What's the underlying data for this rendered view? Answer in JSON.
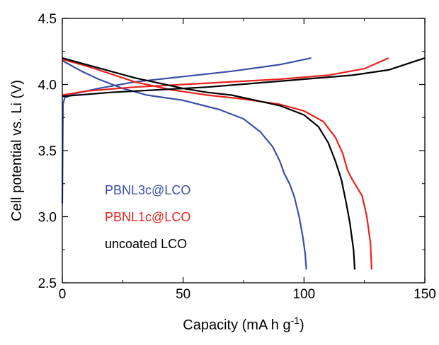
{
  "chart_data": {
    "type": "line",
    "xlabel": "Capacity (mA h g",
    "xlabel_sup": "-1",
    "xlabel_suffix": ")",
    "ylabel": "Cell potential vs. Li (V)",
    "xlim": [
      0,
      150
    ],
    "ylim": [
      2.5,
      4.5
    ],
    "xticks": [
      0,
      50,
      100,
      150
    ],
    "yticks": [
      2.5,
      3.0,
      3.5,
      4.0,
      4.5
    ],
    "xtick_labels": [
      "0",
      "50",
      "100",
      "150"
    ],
    "ytick_labels": [
      "2.5",
      "3.0",
      "3.5",
      "4.0",
      "4.5"
    ],
    "grid": false,
    "legend_placement": "lower-left",
    "series": [
      {
        "name": "PBNL3c@LCO",
        "color": "#3a4fa8",
        "charge": [
          [
            0,
            3.1
          ],
          [
            0.3,
            3.85
          ],
          [
            1,
            3.9
          ],
          [
            5,
            3.93
          ],
          [
            15,
            3.97
          ],
          [
            30,
            4.02
          ],
          [
            50,
            4.06
          ],
          [
            70,
            4.1
          ],
          [
            90,
            4.15
          ],
          [
            103,
            4.2
          ]
        ],
        "discharge": [
          [
            0,
            4.18
          ],
          [
            3,
            4.15
          ],
          [
            8,
            4.1
          ],
          [
            15,
            4.04
          ],
          [
            25,
            3.97
          ],
          [
            35,
            3.92
          ],
          [
            50,
            3.88
          ],
          [
            65,
            3.81
          ],
          [
            75,
            3.74
          ],
          [
            82,
            3.64
          ],
          [
            87,
            3.53
          ],
          [
            90,
            3.42
          ],
          [
            92,
            3.32
          ],
          [
            94,
            3.25
          ],
          [
            96,
            3.15
          ],
          [
            98,
            3.0
          ],
          [
            99.5,
            2.85
          ],
          [
            100.5,
            2.72
          ],
          [
            101,
            2.6
          ]
        ]
      },
      {
        "name": "PBNL1c@LCO",
        "color": "#e8231e",
        "charge": [
          [
            0,
            3.92
          ],
          [
            10,
            3.95
          ],
          [
            30,
            3.98
          ],
          [
            60,
            4.01
          ],
          [
            90,
            4.04
          ],
          [
            110,
            4.07
          ],
          [
            125,
            4.12
          ],
          [
            135,
            4.2
          ]
        ],
        "discharge": [
          [
            0,
            4.19
          ],
          [
            10,
            4.14
          ],
          [
            20,
            4.08
          ],
          [
            30,
            4.02
          ],
          [
            45,
            3.96
          ],
          [
            60,
            3.92
          ],
          [
            75,
            3.89
          ],
          [
            90,
            3.85
          ],
          [
            100,
            3.8
          ],
          [
            108,
            3.72
          ],
          [
            113,
            3.6
          ],
          [
            116,
            3.48
          ],
          [
            118,
            3.35
          ],
          [
            120,
            3.28
          ],
          [
            122,
            3.22
          ],
          [
            124,
            3.16
          ],
          [
            126,
            3.0
          ],
          [
            127.5,
            2.8
          ],
          [
            128,
            2.6
          ]
        ]
      },
      {
        "name": "uncoated LCO",
        "color": "#000000",
        "charge": [
          [
            0,
            3.91
          ],
          [
            20,
            3.94
          ],
          [
            40,
            3.96
          ],
          [
            60,
            3.98
          ],
          [
            80,
            4.01
          ],
          [
            100,
            4.04
          ],
          [
            120,
            4.07
          ],
          [
            135,
            4.11
          ],
          [
            145,
            4.17
          ],
          [
            150,
            4.2
          ]
        ],
        "discharge": [
          [
            0,
            4.2
          ],
          [
            10,
            4.15
          ],
          [
            20,
            4.1
          ],
          [
            30,
            4.05
          ],
          [
            40,
            4.01
          ],
          [
            50,
            3.97
          ],
          [
            60,
            3.94
          ],
          [
            70,
            3.92
          ],
          [
            80,
            3.88
          ],
          [
            90,
            3.84
          ],
          [
            100,
            3.77
          ],
          [
            106,
            3.68
          ],
          [
            110,
            3.56
          ],
          [
            113,
            3.42
          ],
          [
            115.5,
            3.28
          ],
          [
            117.5,
            3.1
          ],
          [
            119,
            2.95
          ],
          [
            120.5,
            2.75
          ],
          [
            121,
            2.6
          ]
        ]
      }
    ]
  }
}
